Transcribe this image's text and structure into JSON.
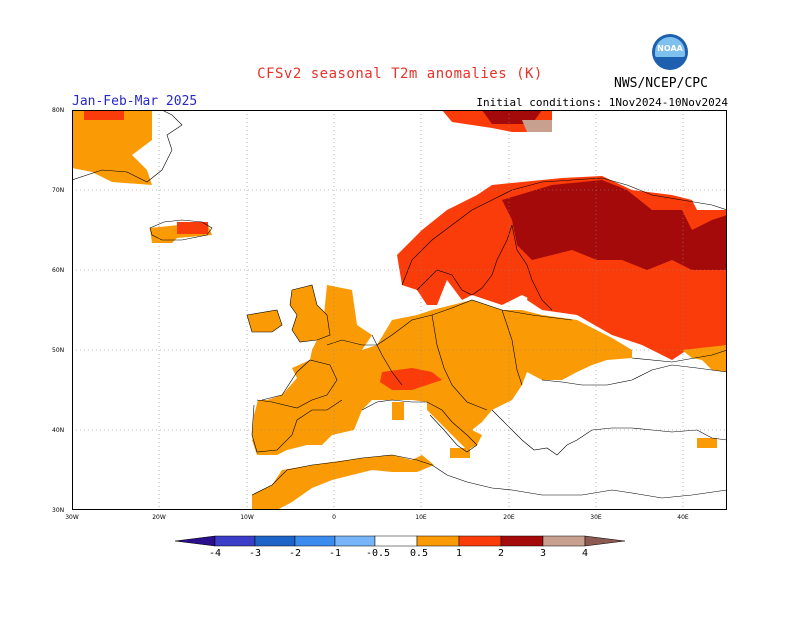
{
  "header": {
    "title": "CFSv2  seasonal  T2m  anomalies  (K)",
    "period": "Jan-Feb-Mar 2025",
    "initial_conditions": "Initial conditions:  1Nov2024-10Nov2024",
    "agency": "NWS/NCEP/CPC",
    "logo_text": "NOAA"
  },
  "axes": {
    "lat_labels": [
      "80N",
      "70N",
      "60N",
      "50N",
      "40N",
      "30N"
    ],
    "lon_labels": [
      "30W",
      "20W",
      "10W",
      "0",
      "10E",
      "20E",
      "30E",
      "40E"
    ]
  },
  "colorbar": {
    "ticks": [
      "-4",
      "-3",
      "-2",
      "-1",
      "-0.5",
      "0.5",
      "1",
      "2",
      "3",
      "4"
    ],
    "colors": {
      "lt_-4": "#2a0f8c",
      "-4_-3": "#3a3ec8",
      "-3_-2": "#1e64c8",
      "-2_-1": "#3c8cf0",
      "-1_-0.5": "#78b4f8",
      "0.5_1": "#fa9b06",
      "1_2": "#fa3c0a",
      "2_3": "#a50a0a",
      "3_4": "#c8a090",
      "gt_4": "#8c5a50"
    }
  },
  "chart_data": {
    "type": "heatmap",
    "title": "CFSv2  seasonal  T2m  anomalies  (K)",
    "subtitle": "Jan-Feb-Mar 2025",
    "units": "K",
    "lon_range": [
      -30,
      45
    ],
    "lat_range": [
      30,
      80
    ],
    "categories": [
      "0.5 to 1",
      "1 to 2",
      "2 to 3",
      "3 to 4"
    ],
    "regions": [
      {
        "name": "Greenland coast",
        "category": "0.5 to 1"
      },
      {
        "name": "Iceland",
        "category": "0.5 to 1"
      },
      {
        "name": "Norway / western Sweden",
        "category": "1 to 2"
      },
      {
        "name": "Northern Scandinavia / Finland / Karelia",
        "category": "2 to 3"
      },
      {
        "name": "Western Russia",
        "category": "1 to 2"
      },
      {
        "name": "Western and Central Europe",
        "category": "0.5 to 1"
      },
      {
        "name": "Alps",
        "category": "1 to 2"
      },
      {
        "name": "Iberia and North Africa",
        "category": "0.5 to 1"
      },
      {
        "name": "Svalbard / Barents",
        "category": "2 to 3"
      }
    ]
  }
}
